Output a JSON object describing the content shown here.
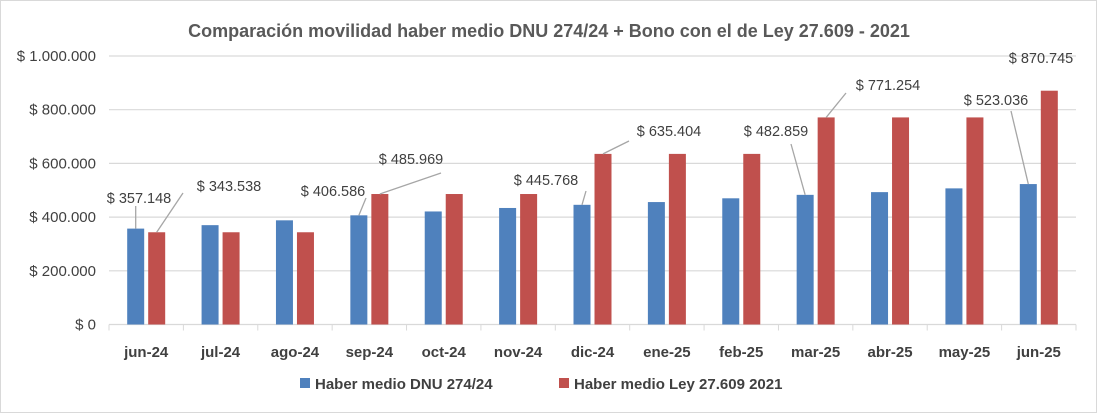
{
  "chart_data": {
    "type": "bar",
    "title": "Comparación  movilidad haber medio DNU 274/24 + Bono con el de Ley 27.609 - 2021",
    "xlabel": "",
    "ylabel": "",
    "ylim": [
      0,
      1000000
    ],
    "yticks": [
      0,
      200000,
      400000,
      600000,
      800000,
      1000000
    ],
    "ytick_labels": [
      "$ 0",
      "$ 200.000",
      "$ 400.000",
      "$ 600.000",
      "$ 800.000",
      "$ 1.000.000"
    ],
    "grid": true,
    "legend_position": "bottom",
    "categories": [
      "jun-24",
      "jul-24",
      "ago-24",
      "sep-24",
      "oct-24",
      "nov-24",
      "dic-24",
      "ene-25",
      "feb-25",
      "mar-25",
      "abr-25",
      "may-25",
      "jun-25"
    ],
    "series": [
      {
        "name": "Haber medio DNU 274/24",
        "color": "#4f81bd",
        "values": [
          357148,
          370000,
          388000,
          406586,
          421000,
          434000,
          445768,
          456000,
          470000,
          482859,
          493000,
          507000,
          523036
        ],
        "data_labels": {
          "0": "$ 357.148",
          "3": "$ 406.586",
          "6": "$ 445.768",
          "9": "$ 482.859",
          "12": "$ 523.036"
        }
      },
      {
        "name": "Haber medio Ley 27.609 2021",
        "color": "#c0504d",
        "values": [
          343538,
          343538,
          343538,
          485969,
          485969,
          485969,
          635404,
          635404,
          635404,
          771254,
          771254,
          771254,
          870745
        ],
        "data_labels": {
          "0": "$ 343.538",
          "3": "$ 485.969",
          "6": "$ 635.404",
          "9": "$ 771.254",
          "12": "$ 870.745"
        }
      }
    ]
  }
}
